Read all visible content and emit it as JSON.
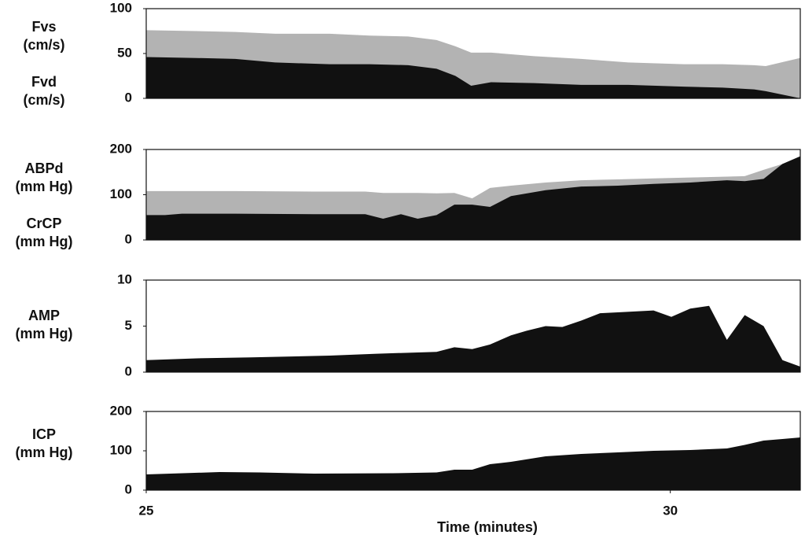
{
  "chart_data": [
    {
      "type": "area",
      "x": [
        25,
        25.48,
        25.85,
        26.23,
        26.75,
        27.13,
        27.5,
        27.77,
        27.95,
        28.1,
        28.29,
        28.7,
        29.15,
        29.6,
        30.13,
        30.5,
        30.8,
        30.91,
        31.24
      ],
      "xlim": [
        25,
        31.24
      ],
      "ylim": [
        0,
        100
      ],
      "yticks": [
        0,
        50,
        100
      ],
      "series": [
        {
          "name": "Fvs\n(cm/s)",
          "color": "#b3b3b3",
          "values": [
            76,
            75,
            74,
            72,
            72,
            70,
            69,
            65,
            58,
            51,
            51,
            47,
            44,
            40,
            38,
            38,
            37,
            36,
            45
          ]
        },
        {
          "name": "Fvd\n(cm/s)",
          "color": "#111111",
          "values": [
            46,
            45,
            44,
            40,
            38,
            38,
            37,
            33,
            25,
            14,
            18,
            17,
            15,
            15,
            13,
            12,
            10,
            8,
            0
          ]
        }
      ]
    },
    {
      "type": "area",
      "x": [
        25,
        25.18,
        25.34,
        25.85,
        26.6,
        27.09,
        27.26,
        27.43,
        27.59,
        27.77,
        27.94,
        28.11,
        28.28,
        28.48,
        28.81,
        29.15,
        29.5,
        29.84,
        30.19,
        30.54,
        30.71,
        30.89,
        31.07,
        31.24
      ],
      "xlim": [
        25,
        31.24
      ],
      "ylim": [
        0,
        200
      ],
      "yticks": [
        0,
        100,
        200
      ],
      "series": [
        {
          "name": "ABPd\n(mm Hg)",
          "color": "#b3b3b3",
          "values": [
            108,
            108,
            108,
            108,
            107,
            107,
            104,
            104,
            104,
            103,
            104,
            92,
            115,
            120,
            127,
            132,
            134,
            136,
            138,
            140,
            141,
            155,
            168,
            175
          ]
        },
        {
          "name": "CrCP\n(mm Hg)",
          "color": "#111111",
          "values": [
            55,
            55,
            58,
            58,
            57,
            57,
            47,
            57,
            47,
            55,
            78,
            78,
            73,
            97,
            110,
            118,
            120,
            124,
            127,
            132,
            130,
            135,
            168,
            185
          ]
        }
      ]
    },
    {
      "type": "area",
      "x": [
        25,
        25.48,
        26,
        26.75,
        27.2,
        27.77,
        27.94,
        28.11,
        28.28,
        28.48,
        28.63,
        28.81,
        28.97,
        29.15,
        29.33,
        29.5,
        29.84,
        30.01,
        30.19,
        30.37,
        30.54,
        30.71,
        30.89,
        31.07,
        31.24
      ],
      "xlim": [
        25,
        31.24
      ],
      "ylim": [
        0,
        10
      ],
      "yticks": [
        0,
        5,
        10
      ],
      "series": [
        {
          "name": "AMP\n(mm Hg)",
          "color": "#111111",
          "values": [
            1.3,
            1.5,
            1.6,
            1.8,
            2.0,
            2.2,
            2.7,
            2.5,
            3.0,
            4.0,
            4.5,
            5.0,
            4.9,
            5.6,
            6.4,
            6.5,
            6.7,
            6.0,
            6.9,
            7.2,
            3.5,
            6.2,
            5.0,
            1.3,
            0.6
          ]
        }
      ]
    },
    {
      "type": "area",
      "x": [
        25,
        25.7,
        26.08,
        26.6,
        27.35,
        27.77,
        27.94,
        28.11,
        28.28,
        28.48,
        28.81,
        29.15,
        29.5,
        29.84,
        30.19,
        30.54,
        30.71,
        30.89,
        31.07,
        31.24
      ],
      "xlim": [
        25,
        31.24
      ],
      "ylim": [
        0,
        200
      ],
      "yticks": [
        0,
        100,
        200
      ],
      "xticks": [
        25,
        30
      ],
      "xlabel": "Time (minutes)",
      "series": [
        {
          "name": "ICP\n(mm Hg)",
          "color": "#111111",
          "values": [
            40,
            46,
            45,
            42,
            43,
            45,
            52,
            52,
            66,
            72,
            86,
            92,
            96,
            100,
            102,
            106,
            115,
            126,
            130,
            134
          ]
        }
      ]
    }
  ]
}
